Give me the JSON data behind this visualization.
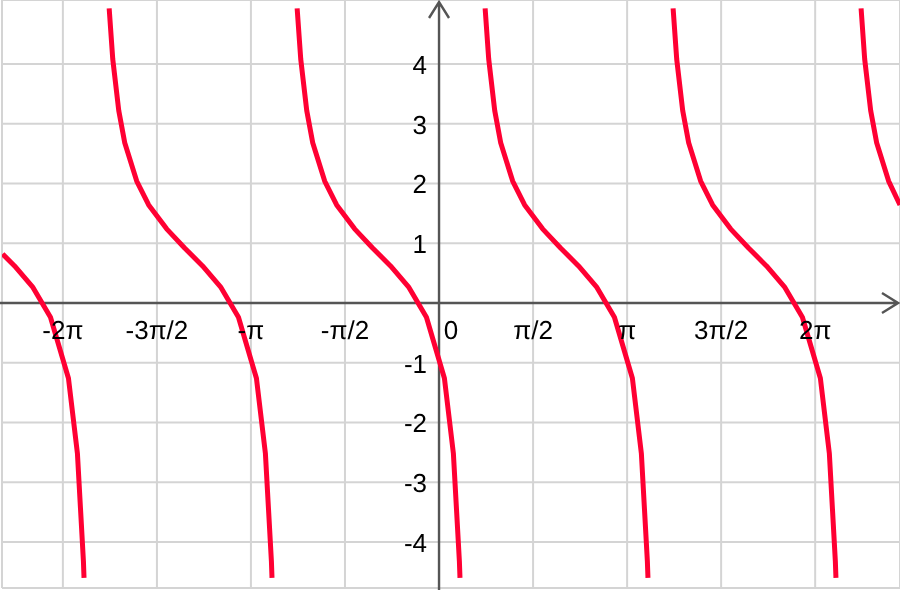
{
  "chart_data": {
    "type": "line",
    "x": [
      -7.29,
      -7.09,
      -6.79,
      -6.49,
      -6.19,
      -6.04,
      -5.94,
      -5.93,
      -5.75,
      -5.51,
      -5.45,
      -5.35,
      -5.25,
      -5.05,
      -4.85,
      -4.55,
      -4.25,
      -3.95,
      -3.65,
      -3.35,
      -3.05,
      -2.9,
      -2.8,
      -2.79,
      -2.61,
      -2.37,
      -2.31,
      -2.21,
      -2.11,
      -1.91,
      -1.71,
      -1.41,
      -1.11,
      -0.81,
      -0.51,
      -0.21,
      0.09,
      0.24,
      0.34,
      0.35,
      0.53,
      0.77,
      0.83,
      0.93,
      1.03,
      1.23,
      1.43,
      1.73,
      2.03,
      2.33,
      2.63,
      2.93,
      3.23,
      3.38,
      3.48,
      3.49,
      3.67,
      3.91,
      3.97,
      4.07,
      4.17,
      4.37,
      4.57,
      4.87,
      5.17,
      5.47,
      5.77,
      6.07,
      6.37,
      6.52,
      6.62,
      6.63,
      6.81,
      7.05,
      7.11,
      7.21,
      7.31,
      7.51,
      7.7
    ],
    "series": [
      {
        "color": "#ff0033",
        "values": [
          0.82,
          0.62,
          0.27,
          -0.24,
          -1.26,
          -2.52,
          -4.32,
          -4.6,
          null,
          4.93,
          4.08,
          3.22,
          2.68,
          2.04,
          1.64,
          1.24,
          0.92,
          0.62,
          0.27,
          -0.24,
          -1.26,
          -2.52,
          -4.32,
          -4.6,
          null,
          4.93,
          4.08,
          3.22,
          2.68,
          2.04,
          1.64,
          1.24,
          0.92,
          0.62,
          0.27,
          -0.24,
          -1.26,
          -2.52,
          -4.32,
          -4.6,
          null,
          4.93,
          4.08,
          3.22,
          2.68,
          2.04,
          1.64,
          1.24,
          0.92,
          0.62,
          0.27,
          -0.24,
          -1.26,
          -2.52,
          -4.32,
          -4.6,
          null,
          4.93,
          4.08,
          3.22,
          2.68,
          2.04,
          1.64,
          1.24,
          0.92,
          0.62,
          0.27,
          -0.24,
          -1.26,
          -2.52,
          -4.32,
          -4.6,
          null,
          4.93,
          4.08,
          3.22,
          2.68,
          2.04,
          1.64
        ]
      }
    ],
    "xlim": [
      -7.3,
      7.7
    ],
    "ylim": [
      -4.77,
      5.07
    ],
    "xticks": [
      {
        "value": -6.283,
        "label": "-2π"
      },
      {
        "value": -4.712,
        "label": "-3π/2"
      },
      {
        "value": -3.142,
        "label": "-π"
      },
      {
        "value": -1.571,
        "label": "-π/2"
      },
      {
        "value": 0,
        "label": "0"
      },
      {
        "value": 1.571,
        "label": "π/2"
      },
      {
        "value": 3.142,
        "label": "π"
      },
      {
        "value": 4.712,
        "label": "3π/2"
      },
      {
        "value": 6.283,
        "label": "2π"
      }
    ],
    "yticks": [
      -4,
      -3,
      -2,
      -1,
      1,
      2,
      3,
      4
    ],
    "grid": true,
    "marker": "none",
    "line_style": "solid"
  }
}
